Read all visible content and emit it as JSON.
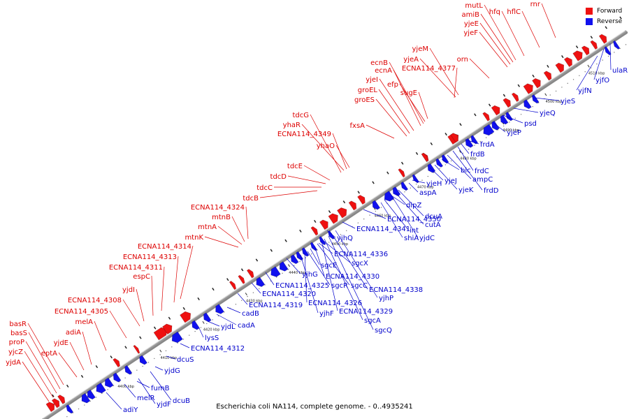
{
  "caption": "Escherichia coli NA114, complete genome. - 0..4935241",
  "legend": {
    "forward_label": "Forward",
    "reverse_label": "Reverse",
    "forward_color": "#ee1111",
    "reverse_color": "#1111ee"
  },
  "tick_labels": [
    "4400 kbp",
    "4410 kbp",
    "4420 kbp",
    "4430 kbp",
    "4440 kbp",
    "4450 kbp",
    "4460 kbp",
    "4470 kbp",
    "4480 kbp",
    "4490 kbp",
    "4500 kbp",
    "4510 kbp",
    "4520 kbp"
  ],
  "forward_genes": [
    "yjdA",
    "yjcZ",
    "proP",
    "basS",
    "basR",
    "eptA",
    "adiA",
    "yjdE",
    "melA",
    "ECNA114_4305",
    "ECNA114_4308",
    "yjdI",
    "espC",
    "ECNA114_4311",
    "ECNA114_4313",
    "ECNA114_4314",
    "mtnK",
    "mtnA",
    "mtnB",
    "ECNA114_4324",
    "tdcB",
    "tdcC",
    "tdcD",
    "tdcE",
    "ECNA114_4349",
    "yhaR",
    "tdcG",
    "yhaO",
    "fxsA",
    "groES",
    "groEL",
    "yjeI",
    "ecnA",
    "ecnB",
    "efp",
    "sugE",
    "ECNA114_4377",
    "yjeA",
    "yjeM",
    "orn",
    "yjeF",
    "yjeE",
    "amiB",
    "mutL",
    "hfq",
    "hflC",
    "rnr"
  ],
  "reverse_genes": [
    "adiY",
    "yjdF",
    "melR",
    "dcuB",
    "fumB",
    "yjdG",
    "dcuS",
    "ECNA114_4312",
    "lysS",
    "yjdL",
    "cadA",
    "cadB",
    "ECNA114_4319",
    "ECNA114_4320",
    "ECNA114_4325",
    "yjhG",
    "yjhF",
    "sgcR",
    "ECNA114_4326",
    "sgcE",
    "ECNA114_4330",
    "sgcC",
    "ECNA114_4329",
    "sgcA",
    "sgcQ",
    "yjhP",
    "ECNA114_4338",
    "sgcX",
    "ECNA114_4336",
    "yjhQ",
    "ECNA114_4341",
    "int",
    "shiA",
    "ECNA114_4350",
    "yjdC",
    "cutA",
    "dcuA",
    "dipZ",
    "aspA",
    "yjeH",
    "yjeJ",
    "yjeK",
    "ampC",
    "frdD",
    "frdC",
    "blc",
    "frdB",
    "frdA",
    "yjeP",
    "psd",
    "yjeQ",
    "yjeS",
    "yjfN",
    "yjfO",
    "ulaR"
  ]
}
